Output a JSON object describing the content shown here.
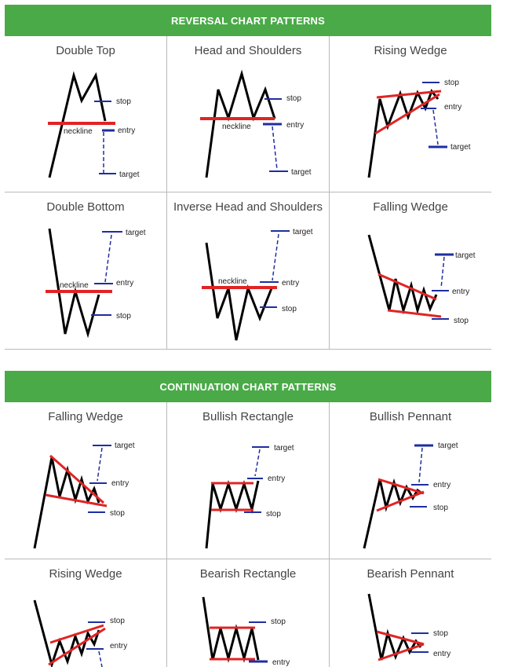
{
  "colors": {
    "banner": "#4aaa48",
    "resistance": "#e02424",
    "level": "#1e2ea0",
    "price": "#000000"
  },
  "sections": [
    {
      "title": "REVERSAL CHART PATTERNS",
      "patterns": [
        {
          "title": "Double Top",
          "labels": {
            "stop": "stop",
            "entry": "entry",
            "target": "target",
            "neckline": "neckline"
          }
        },
        {
          "title": "Head and Shoulders",
          "labels": {
            "stop": "stop",
            "entry": "entry",
            "target": "target",
            "neckline": "neckline"
          }
        },
        {
          "title": "Rising Wedge",
          "labels": {
            "stop": "stop",
            "entry": "entry",
            "target": "target"
          }
        },
        {
          "title": "Double Bottom",
          "labels": {
            "stop": "stop",
            "entry": "entry",
            "target": "target",
            "neckline": "neckline"
          }
        },
        {
          "title": "Inverse Head and Shoulders",
          "labels": {
            "stop": "stop",
            "entry": "entry",
            "target": "target",
            "neckline": "neckline"
          }
        },
        {
          "title": "Falling Wedge",
          "labels": {
            "stop": "stop",
            "entry": "entry",
            "target": "target"
          }
        }
      ]
    },
    {
      "title": "CONTINUATION CHART PATTERNS",
      "patterns": [
        {
          "title": "Falling Wedge",
          "labels": {
            "stop": "stop",
            "entry": "entry",
            "target": "target"
          }
        },
        {
          "title": "Bullish Rectangle",
          "labels": {
            "stop": "stop",
            "entry": "entry",
            "target": "target"
          }
        },
        {
          "title": "Bullish Pennant",
          "labels": {
            "stop": "stop",
            "entry": "entry",
            "target": "target"
          }
        },
        {
          "title": "Rising Wedge",
          "labels": {
            "stop": "stop",
            "entry": "entry"
          }
        },
        {
          "title": "Bearish Rectangle",
          "labels": {
            "stop": "stop",
            "entry": "entry"
          }
        },
        {
          "title": "Bearish Pennant",
          "labels": {
            "stop": "stop",
            "entry": "entry"
          }
        }
      ]
    }
  ]
}
